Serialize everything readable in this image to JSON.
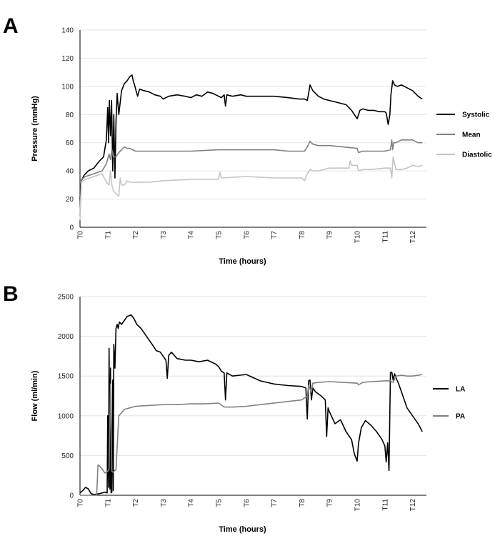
{
  "chart_data": [
    {
      "panel_label": "A",
      "type": "line",
      "title": "",
      "xlabel": "Time (hours)",
      "ylabel": "Pressure (mmHg)",
      "xlim": [
        0,
        12.5
      ],
      "ylim": [
        0,
        140
      ],
      "yticks": [
        0,
        20,
        40,
        60,
        80,
        100,
        120,
        140
      ],
      "xticks": [
        {
          "label": "T0",
          "x": 0
        },
        {
          "label": "T1",
          "x": 1
        },
        {
          "label": "T2",
          "x": 2
        },
        {
          "label": "T3",
          "x": 3
        },
        {
          "label": "T4",
          "x": 4
        },
        {
          "label": "T5",
          "x": 5
        },
        {
          "label": "T6",
          "x": 6
        },
        {
          "label": "T7",
          "x": 7
        },
        {
          "label": "T8",
          "x": 8
        },
        {
          "label": "T9",
          "x": 9
        },
        {
          "label": "T10",
          "x": 10
        },
        {
          "label": "T11",
          "x": 11
        },
        {
          "label": "T12",
          "x": 12
        }
      ],
      "grid": true,
      "legend_position": "right",
      "series": [
        {
          "name": "Systolic",
          "color": "#000000",
          "x": [
            0,
            0.05,
            0.15,
            0.3,
            0.5,
            0.7,
            0.85,
            0.95,
            1.0,
            1.03,
            1.06,
            1.1,
            1.14,
            1.18,
            1.22,
            1.26,
            1.3,
            1.34,
            1.4,
            1.5,
            1.6,
            1.7,
            1.8,
            1.88,
            1.92,
            1.97,
            2.02,
            2.08,
            2.15,
            2.3,
            2.5,
            2.7,
            2.9,
            3.0,
            3.2,
            3.5,
            3.8,
            4.0,
            4.2,
            4.4,
            4.6,
            4.8,
            5.0,
            5.1,
            5.2,
            5.25,
            5.3,
            5.5,
            5.8,
            6.0,
            6.5,
            7.0,
            7.5,
            7.9,
            8.1,
            8.2,
            8.25,
            8.3,
            8.4,
            8.6,
            8.8,
            9.0,
            9.2,
            9.4,
            9.6,
            9.8,
            10.0,
            10.1,
            10.2,
            10.4,
            10.6,
            10.8,
            11.0,
            11.05,
            11.12,
            11.18,
            11.22,
            11.28,
            11.35,
            11.45,
            11.6,
            11.8,
            12.0,
            12.2,
            12.35
          ],
          "y": [
            20,
            33,
            37,
            40,
            42,
            47,
            50,
            62,
            85,
            60,
            90,
            65,
            90,
            40,
            80,
            35,
            75,
            95,
            80,
            97,
            102,
            104,
            107,
            108,
            104,
            101,
            97,
            93,
            98,
            97,
            96,
            94,
            93,
            91,
            93,
            94,
            93,
            92,
            94,
            93,
            96,
            95,
            93,
            92,
            94,
            86,
            94,
            93,
            94,
            93,
            93,
            93,
            92,
            91,
            91,
            90,
            95,
            101,
            97,
            93,
            91,
            90,
            89,
            88,
            87,
            83,
            77,
            83,
            84,
            83,
            83,
            82,
            82,
            81,
            73,
            80,
            94,
            104,
            101,
            100,
            101,
            99,
            97,
            93,
            91
          ]
        },
        {
          "name": "Mean",
          "color": "#808080",
          "x": [
            0,
            0.05,
            0.2,
            0.5,
            0.8,
            0.95,
            1.05,
            1.1,
            1.15,
            1.2,
            1.3,
            1.4,
            1.5,
            1.6,
            1.7,
            1.8,
            2.0,
            2.5,
            3.0,
            4.0,
            5.0,
            6.0,
            7.0,
            7.5,
            8.0,
            8.1,
            8.2,
            8.3,
            8.4,
            8.6,
            9.0,
            9.5,
            10.0,
            10.05,
            10.2,
            10.5,
            11.0,
            11.2,
            11.25,
            11.28,
            11.32,
            11.4,
            11.6,
            11.8,
            12.0,
            12.2,
            12.35
          ],
          "y": [
            8,
            34,
            36,
            38,
            40,
            45,
            52,
            48,
            55,
            50,
            50,
            53,
            55,
            57,
            56,
            56,
            54,
            54,
            54,
            54,
            55,
            55,
            55,
            54,
            54,
            54,
            57,
            61,
            59,
            58,
            58,
            57,
            56,
            53,
            54,
            54,
            54,
            55,
            62,
            55,
            60,
            60,
            62,
            62,
            62,
            60,
            60
          ]
        },
        {
          "name": "Diastolic",
          "color": "#c4c4c4",
          "x": [
            0,
            0.05,
            0.2,
            0.5,
            0.8,
            0.95,
            1.05,
            1.1,
            1.15,
            1.2,
            1.3,
            1.4,
            1.45,
            1.5,
            1.6,
            1.7,
            1.8,
            2.0,
            2.5,
            3.0,
            4.0,
            5.0,
            5.05,
            5.1,
            6.0,
            7.0,
            7.5,
            8.0,
            8.1,
            8.2,
            8.3,
            8.4,
            8.6,
            9.0,
            9.5,
            9.7,
            9.75,
            9.8,
            10.0,
            10.05,
            10.2,
            10.5,
            11.0,
            11.2,
            11.25,
            11.3,
            11.4,
            11.6,
            11.8,
            12.0,
            12.2,
            12.35
          ],
          "y": [
            5,
            32,
            34,
            36,
            38,
            32,
            30,
            40,
            30,
            26,
            24,
            22,
            35,
            30,
            30,
            33,
            32,
            32,
            32,
            33,
            34,
            34,
            39,
            35,
            36,
            35,
            35,
            35,
            33,
            38,
            41,
            40,
            40,
            42,
            42,
            42,
            47,
            44,
            44,
            40,
            41,
            41,
            42,
            42,
            35,
            50,
            41,
            41,
            42,
            44,
            43,
            44
          ]
        }
      ]
    },
    {
      "panel_label": "B",
      "type": "line",
      "title": "",
      "xlabel": "Time (hours)",
      "ylabel": "Flow (ml/min)",
      "xlim": [
        0,
        12.5
      ],
      "ylim": [
        0,
        2500
      ],
      "yticks": [
        0,
        500,
        1000,
        1500,
        2000,
        2500
      ],
      "xticks": [
        {
          "label": "T0",
          "x": 0
        },
        {
          "label": "T1",
          "x": 1
        },
        {
          "label": "T2",
          "x": 2
        },
        {
          "label": "T3",
          "x": 3
        },
        {
          "label": "T4",
          "x": 4
        },
        {
          "label": "T5",
          "x": 5
        },
        {
          "label": "T6",
          "x": 6
        },
        {
          "label": "T7",
          "x": 7
        },
        {
          "label": "T8",
          "x": 8
        },
        {
          "label": "T9",
          "x": 9
        },
        {
          "label": "T10",
          "x": 10
        },
        {
          "label": "T11",
          "x": 11
        },
        {
          "label": "T12",
          "x": 12
        }
      ],
      "grid": true,
      "legend_position": "right",
      "series": [
        {
          "name": "LA",
          "color": "#000000",
          "x": [
            0,
            0.1,
            0.2,
            0.3,
            0.4,
            0.5,
            0.7,
            0.9,
            0.98,
            1.0,
            1.03,
            1.05,
            1.08,
            1.1,
            1.12,
            1.15,
            1.18,
            1.2,
            1.22,
            1.26,
            1.3,
            1.34,
            1.38,
            1.42,
            1.5,
            1.6,
            1.7,
            1.85,
            1.95,
            2.05,
            2.2,
            2.4,
            2.6,
            2.75,
            2.9,
            3.0,
            3.1,
            3.15,
            3.2,
            3.3,
            3.5,
            3.8,
            4.0,
            4.3,
            4.6,
            4.9,
            5.0,
            5.1,
            5.2,
            5.25,
            5.3,
            5.5,
            6.0,
            6.5,
            7.0,
            7.5,
            8.0,
            8.15,
            8.2,
            8.25,
            8.3,
            8.35,
            8.4,
            8.5,
            8.7,
            8.85,
            8.9,
            8.95,
            9.0,
            9.2,
            9.4,
            9.6,
            9.8,
            9.9,
            10.0,
            10.05,
            10.15,
            10.3,
            10.5,
            10.7,
            10.9,
            11.0,
            11.05,
            11.1,
            11.15,
            11.2,
            11.25,
            11.3,
            11.35,
            11.4,
            11.5,
            11.6,
            11.7,
            11.8,
            12.0,
            12.2,
            12.35
          ],
          "y": [
            30,
            60,
            100,
            80,
            20,
            10,
            20,
            40,
            30,
            1000,
            100,
            1850,
            80,
            1600,
            30,
            40,
            1450,
            60,
            1900,
            1600,
            2100,
            2150,
            2100,
            2180,
            2150,
            2200,
            2250,
            2270,
            2220,
            2150,
            2100,
            2000,
            1900,
            1820,
            1800,
            1750,
            1700,
            1470,
            1760,
            1800,
            1720,
            1700,
            1700,
            1680,
            1700,
            1650,
            1620,
            1560,
            1540,
            1200,
            1540,
            1500,
            1520,
            1440,
            1400,
            1380,
            1370,
            1350,
            960,
            1440,
            1450,
            1200,
            1350,
            1300,
            1250,
            1200,
            740,
            1100,
            1050,
            900,
            950,
            800,
            700,
            520,
            430,
            650,
            850,
            940,
            880,
            800,
            700,
            620,
            420,
            660,
            310,
            1540,
            1550,
            1450,
            1530,
            1480,
            1400,
            1300,
            1200,
            1100,
            1000,
            900,
            800
          ]
        },
        {
          "name": "PA",
          "color": "#808080",
          "x": [
            0,
            0.6,
            0.65,
            0.7,
            0.8,
            0.9,
            1.0,
            1.05,
            1.1,
            1.15,
            1.2,
            1.25,
            1.3,
            1.4,
            1.6,
            1.8,
            2.0,
            2.5,
            3.0,
            3.5,
            4.0,
            4.5,
            5.0,
            5.2,
            5.5,
            6.0,
            6.5,
            7.0,
            7.5,
            8.0,
            8.2,
            8.25,
            8.3,
            8.35,
            8.4,
            8.6,
            9.0,
            9.5,
            10.0,
            10.05,
            10.2,
            10.5,
            11.0,
            11.2,
            11.3,
            11.4,
            11.6,
            11.8,
            12.0,
            12.2,
            12.35
          ],
          "y": [
            0,
            0,
            380,
            370,
            330,
            280,
            300,
            330,
            1400,
            300,
            290,
            310,
            320,
            1000,
            1080,
            1100,
            1120,
            1130,
            1140,
            1140,
            1150,
            1150,
            1160,
            1110,
            1110,
            1120,
            1140,
            1160,
            1180,
            1200,
            1250,
            1380,
            1340,
            1300,
            1410,
            1420,
            1430,
            1420,
            1410,
            1390,
            1420,
            1430,
            1440,
            1440,
            1420,
            1500,
            1510,
            1500,
            1500,
            1510,
            1520
          ]
        }
      ]
    }
  ]
}
